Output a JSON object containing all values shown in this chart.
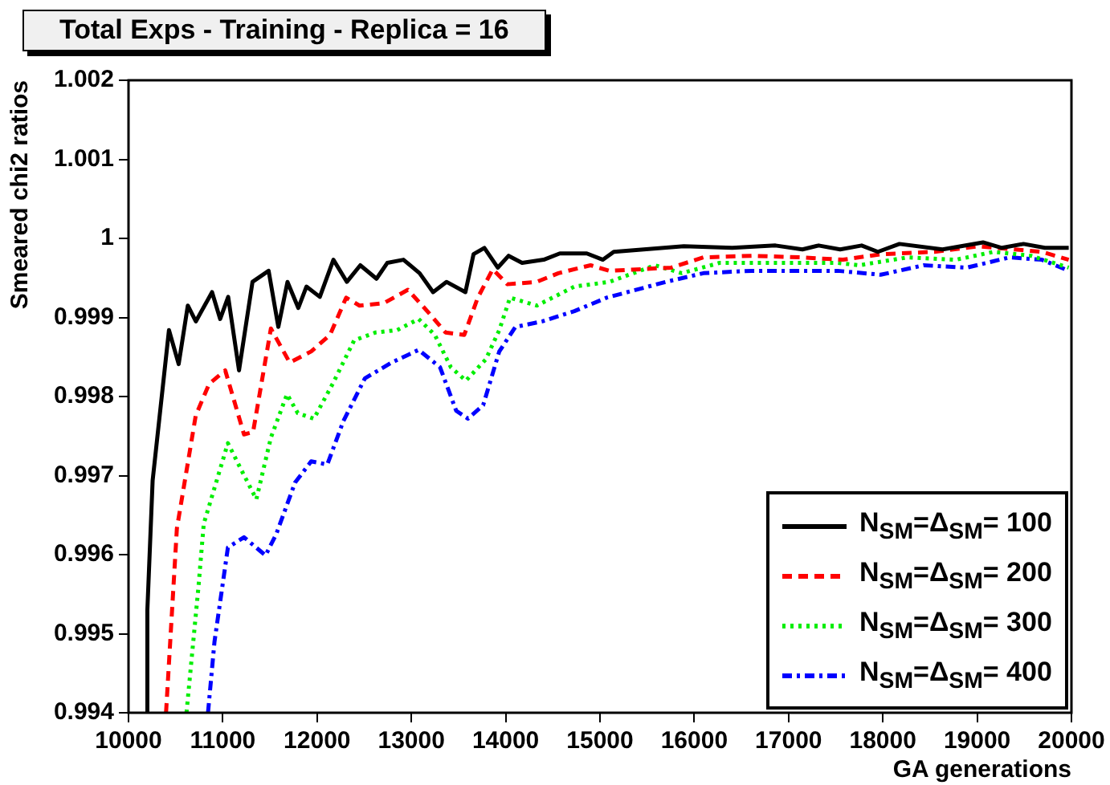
{
  "chart_data": {
    "type": "line",
    "title": "Total Exps - Training - Replica = 16",
    "xlabel": "GA generations",
    "ylabel": "Smeared chi2 ratios",
    "xlim": [
      10000,
      20000
    ],
    "xticks": [
      10000,
      11000,
      12000,
      13000,
      14000,
      15000,
      16000,
      17000,
      18000,
      19000,
      20000
    ],
    "ylim": [
      0.994,
      1.002
    ],
    "yticks": [
      0.994,
      0.995,
      0.996,
      0.997,
      0.998,
      0.999,
      1,
      1.001,
      1.002
    ],
    "grid": false,
    "legend": "bottom right",
    "marker": "none",
    "series": [
      {
        "name": "N$_{SM}$=Δ$_{SM}$= 100",
        "color": "#000000",
        "line_style": "solid",
        "x": [
          10190,
          10200,
          10256,
          10429,
          10532,
          10629,
          10714,
          10886,
          10972,
          11057,
          11172,
          11315,
          11486,
          11589,
          11686,
          11801,
          11887,
          12029,
          12173,
          12316,
          12458,
          12630,
          12744,
          12916,
          13087,
          13230,
          13372,
          13573,
          13659,
          13774,
          13916,
          14031,
          14174,
          14403,
          14574,
          14860,
          15031,
          15146,
          15889,
          16403,
          16861,
          17147,
          17319,
          17547,
          17775,
          17947,
          18176,
          18633,
          19062,
          19262,
          19491,
          19719,
          19971
        ],
        "values": [
          0.994,
          0.9953,
          0.99694,
          0.99884,
          0.99841,
          0.99915,
          0.99895,
          0.99932,
          0.99898,
          0.99926,
          0.99833,
          0.99945,
          0.99959,
          0.99888,
          0.99945,
          0.99912,
          0.99939,
          0.99926,
          0.99973,
          0.99945,
          0.99966,
          0.99949,
          0.99969,
          0.99973,
          0.99956,
          0.99932,
          0.99945,
          0.99932,
          0.9998,
          0.99988,
          0.99963,
          0.99978,
          0.99969,
          0.99973,
          0.99981,
          0.99981,
          0.99973,
          0.99983,
          0.9999,
          0.99988,
          0.99991,
          0.99986,
          0.99991,
          0.99986,
          0.99991,
          0.99983,
          0.99993,
          0.99986,
          0.99995,
          0.99988,
          0.99993,
          0.99988,
          0.99988
        ]
      },
      {
        "name": "N$_{SM}$=Δ$_{SM}$= 200",
        "color": "#ff0000",
        "line_style": "dashed",
        "x": [
          10398,
          10513,
          10713,
          10855,
          11026,
          11225,
          11321,
          11510,
          11709,
          11937,
          12137,
          12308,
          12450,
          12707,
          12963,
          13191,
          13362,
          13561,
          13704,
          13863,
          14017,
          14330,
          14559,
          14900,
          15100,
          15755,
          16097,
          16610,
          17123,
          17578,
          17977,
          18547,
          19003,
          19402,
          19687,
          19971
        ],
        "values": [
          0.994,
          0.99633,
          0.99776,
          0.99816,
          0.99833,
          0.99752,
          0.99755,
          0.99886,
          0.99843,
          0.99857,
          0.99878,
          0.99925,
          0.99915,
          0.99918,
          0.99935,
          0.99905,
          0.99881,
          0.99878,
          0.99925,
          0.99961,
          0.99942,
          0.99945,
          0.99956,
          0.99966,
          0.99959,
          0.99963,
          0.99976,
          0.99978,
          0.99976,
          0.99973,
          0.9998,
          0.99983,
          0.9999,
          0.99986,
          0.99983,
          0.99973
        ]
      },
      {
        "name": "N$_{SM}$=Δ$_{SM}$= 300",
        "color": "#00ee00",
        "line_style": "dotted",
        "x": [
          10615,
          10741,
          10798,
          11054,
          11197,
          11356,
          11510,
          11681,
          11795,
          11966,
          12165,
          12393,
          12621,
          12849,
          13077,
          13248,
          13419,
          13578,
          13789,
          13932,
          14046,
          14330,
          14729,
          15100,
          15584,
          15868,
          16268,
          16838,
          17521,
          17749,
          18262,
          18775,
          19174,
          19573,
          19971
        ],
        "values": [
          0.994,
          0.99558,
          0.99639,
          0.99741,
          0.99707,
          0.9967,
          0.99748,
          0.99803,
          0.99779,
          0.99772,
          0.99816,
          0.99871,
          0.99881,
          0.99884,
          0.99898,
          0.99878,
          0.99837,
          0.9982,
          0.99847,
          0.99884,
          0.99925,
          0.99915,
          0.99939,
          0.99945,
          0.99966,
          0.99956,
          0.99969,
          0.99969,
          0.99969,
          0.99966,
          0.99976,
          0.99973,
          0.99983,
          0.99978,
          0.99963
        ]
      },
      {
        "name": "N$_{SM}$=Δ$_{SM}$= 400",
        "color": "#0000ff",
        "line_style": "dashdot",
        "x": [
          10843,
          10912,
          11054,
          11225,
          11453,
          11567,
          11766,
          11937,
          12108,
          12279,
          12507,
          12791,
          13077,
          13304,
          13475,
          13600,
          13761,
          13932,
          14103,
          14388,
          14729,
          15071,
          15698,
          16097,
          16610,
          17123,
          17521,
          17977,
          18433,
          18889,
          19345,
          19687,
          19971
        ],
        "values": [
          0.994,
          0.9949,
          0.99609,
          0.99622,
          0.99599,
          0.99626,
          0.99691,
          0.99718,
          0.99714,
          0.99769,
          0.99823,
          0.99843,
          0.99859,
          0.99837,
          0.99782,
          0.99772,
          0.99789,
          0.99857,
          0.99888,
          0.99895,
          0.99908,
          0.99925,
          0.99945,
          0.99956,
          0.99959,
          0.99959,
          0.99959,
          0.99954,
          0.99966,
          0.99963,
          0.99976,
          0.99973,
          0.99959
        ]
      }
    ]
  }
}
